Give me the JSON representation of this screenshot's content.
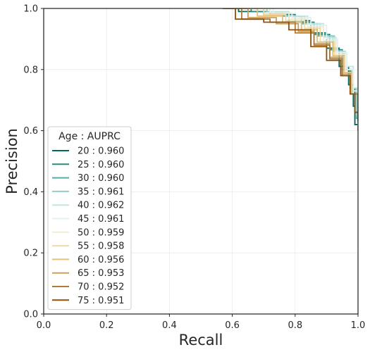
{
  "chart_data": {
    "type": "line",
    "title": "",
    "xlabel": "Recall",
    "ylabel": "Precision",
    "xlim": [
      0.0,
      1.0
    ],
    "ylim": [
      0.0,
      1.0
    ],
    "xticks": [
      "0.0",
      "0.2",
      "0.4",
      "0.6",
      "0.8",
      "1.0"
    ],
    "yticks": [
      "0.0",
      "0.2",
      "0.4",
      "0.6",
      "0.8",
      "1.0"
    ],
    "grid": true,
    "legend_title": "Age : AUPRC",
    "legend_position": "lower-left",
    "series": [
      {
        "name": "20 : 0.960",
        "color": "#01665e",
        "points": [
          [
            0.57,
            1.0
          ],
          [
            0.62,
            0.99
          ],
          [
            0.7,
            0.98
          ],
          [
            0.78,
            0.96
          ],
          [
            0.85,
            0.92
          ],
          [
            0.9,
            0.87
          ],
          [
            0.94,
            0.81
          ],
          [
            0.97,
            0.75
          ],
          [
            0.985,
            0.68
          ],
          [
            0.99,
            0.62
          ],
          [
            1.0,
            0.61
          ]
        ]
      },
      {
        "name": "25 : 0.960",
        "color": "#2a8a82",
        "points": [
          [
            0.59,
            1.0
          ],
          [
            0.66,
            0.99
          ],
          [
            0.72,
            0.98
          ],
          [
            0.8,
            0.955
          ],
          [
            0.86,
            0.915
          ],
          [
            0.91,
            0.865
          ],
          [
            0.95,
            0.8
          ],
          [
            0.975,
            0.74
          ],
          [
            0.99,
            0.66
          ],
          [
            1.0,
            0.6
          ]
        ]
      },
      {
        "name": "30 : 0.960",
        "color": "#52aea6",
        "points": [
          [
            0.6,
            1.0
          ],
          [
            0.7,
            0.99
          ],
          [
            0.76,
            0.975
          ],
          [
            0.82,
            0.95
          ],
          [
            0.87,
            0.91
          ],
          [
            0.92,
            0.86
          ],
          [
            0.955,
            0.8
          ],
          [
            0.98,
            0.73
          ],
          [
            0.995,
            0.64
          ],
          [
            1.0,
            0.6
          ]
        ]
      },
      {
        "name": "35 : 0.961",
        "color": "#8ed0c6",
        "points": [
          [
            0.61,
            1.0
          ],
          [
            0.71,
            0.99
          ],
          [
            0.77,
            0.975
          ],
          [
            0.83,
            0.95
          ],
          [
            0.88,
            0.91
          ],
          [
            0.925,
            0.86
          ],
          [
            0.96,
            0.8
          ],
          [
            0.98,
            0.74
          ],
          [
            0.995,
            0.65
          ],
          [
            1.0,
            0.61
          ]
        ]
      },
      {
        "name": "40 : 0.962",
        "color": "#c0e6df",
        "points": [
          [
            0.62,
            1.0
          ],
          [
            0.72,
            0.99
          ],
          [
            0.78,
            0.975
          ],
          [
            0.84,
            0.95
          ],
          [
            0.89,
            0.905
          ],
          [
            0.93,
            0.86
          ],
          [
            0.96,
            0.81
          ],
          [
            0.985,
            0.74
          ],
          [
            1.0,
            0.63
          ]
        ]
      },
      {
        "name": "45 : 0.961",
        "color": "#e4f1ee",
        "points": [
          [
            0.63,
            1.0
          ],
          [
            0.73,
            0.985
          ],
          [
            0.79,
            0.97
          ],
          [
            0.85,
            0.945
          ],
          [
            0.9,
            0.9
          ],
          [
            0.935,
            0.855
          ],
          [
            0.965,
            0.8
          ],
          [
            0.985,
            0.73
          ],
          [
            1.0,
            0.62
          ]
        ]
      },
      {
        "name": "50 : 0.959",
        "color": "#f4ebd6",
        "points": [
          [
            0.62,
            1.0
          ],
          [
            0.72,
            0.985
          ],
          [
            0.78,
            0.965
          ],
          [
            0.84,
            0.94
          ],
          [
            0.89,
            0.895
          ],
          [
            0.93,
            0.85
          ],
          [
            0.96,
            0.79
          ],
          [
            0.985,
            0.72
          ],
          [
            1.0,
            0.62
          ]
        ]
      },
      {
        "name": "55 : 0.958",
        "color": "#f0dca6",
        "points": [
          [
            0.6,
            1.0
          ],
          [
            0.7,
            0.98
          ],
          [
            0.77,
            0.96
          ],
          [
            0.83,
            0.935
          ],
          [
            0.88,
            0.89
          ],
          [
            0.925,
            0.845
          ],
          [
            0.955,
            0.79
          ],
          [
            0.98,
            0.72
          ],
          [
            1.0,
            0.63
          ]
        ]
      },
      {
        "name": "60 : 0.956",
        "color": "#e3c07a",
        "points": [
          [
            0.59,
            1.0
          ],
          [
            0.68,
            0.975
          ],
          [
            0.76,
            0.955
          ],
          [
            0.82,
            0.93
          ],
          [
            0.87,
            0.89
          ],
          [
            0.92,
            0.845
          ],
          [
            0.955,
            0.79
          ],
          [
            0.98,
            0.72
          ],
          [
            1.0,
            0.62
          ]
        ]
      },
      {
        "name": "65 : 0.953",
        "color": "#cf9f58",
        "points": [
          [
            0.58,
            1.0
          ],
          [
            0.65,
            0.97
          ],
          [
            0.74,
            0.95
          ],
          [
            0.81,
            0.925
          ],
          [
            0.86,
            0.885
          ],
          [
            0.91,
            0.84
          ],
          [
            0.95,
            0.785
          ],
          [
            0.975,
            0.72
          ],
          [
            1.0,
            0.63
          ]
        ]
      },
      {
        "name": "70 : 0.952",
        "color": "#b07a33",
        "points": [
          [
            0.58,
            1.0
          ],
          [
            0.63,
            0.965
          ],
          [
            0.72,
            0.955
          ],
          [
            0.8,
            0.92
          ],
          [
            0.86,
            0.88
          ],
          [
            0.91,
            0.835
          ],
          [
            0.95,
            0.78
          ],
          [
            0.975,
            0.72
          ],
          [
            1.0,
            0.63
          ]
        ]
      },
      {
        "name": "75 : 0.951",
        "color": "#8c510a",
        "points": [
          [
            0.57,
            1.0
          ],
          [
            0.61,
            0.965
          ],
          [
            0.7,
            0.955
          ],
          [
            0.78,
            0.93
          ],
          [
            0.85,
            0.875
          ],
          [
            0.9,
            0.83
          ],
          [
            0.945,
            0.78
          ],
          [
            0.975,
            0.72
          ],
          [
            0.99,
            0.66
          ],
          [
            1.0,
            0.63
          ]
        ]
      }
    ]
  }
}
